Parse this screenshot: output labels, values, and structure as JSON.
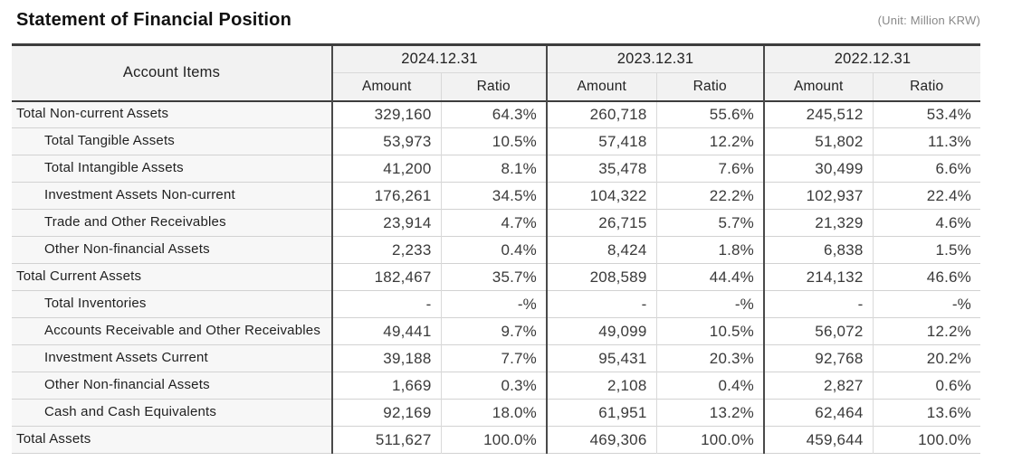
{
  "title": "Statement of Financial Position",
  "unit_note": "(Unit: Million KRW)",
  "colors": {
    "dark_border": "#3d3d3d",
    "light_border": "#d2d2d2",
    "header_bg": "#f2f2f2",
    "label_column_bg": "#f7f7f7",
    "unit_text": "#888888"
  },
  "table": {
    "account_header": "Account Items",
    "period_headers": [
      "2024.12.31",
      "2023.12.31",
      "2022.12.31"
    ],
    "sub_headers": [
      "Amount",
      "Ratio"
    ],
    "rows": [
      {
        "label": "Total Non-current Assets",
        "level": 0,
        "values": [
          "329,160",
          "64.3%",
          "260,718",
          "55.6%",
          "245,512",
          "53.4%"
        ]
      },
      {
        "label": "Total Tangible Assets",
        "level": 1,
        "values": [
          "53,973",
          "10.5%",
          "57,418",
          "12.2%",
          "51,802",
          "11.3%"
        ]
      },
      {
        "label": "Total Intangible Assets",
        "level": 1,
        "values": [
          "41,200",
          "8.1%",
          "35,478",
          "7.6%",
          "30,499",
          "6.6%"
        ]
      },
      {
        "label": "Investment Assets Non-current",
        "level": 1,
        "values": [
          "176,261",
          "34.5%",
          "104,322",
          "22.2%",
          "102,937",
          "22.4%"
        ]
      },
      {
        "label": "Trade and Other Receivables",
        "level": 1,
        "values": [
          "23,914",
          "4.7%",
          "26,715",
          "5.7%",
          "21,329",
          "4.6%"
        ]
      },
      {
        "label": "Other Non-financial Assets",
        "level": 1,
        "values": [
          "2,233",
          "0.4%",
          "8,424",
          "1.8%",
          "6,838",
          "1.5%"
        ]
      },
      {
        "label": "Total Current Assets",
        "level": 0,
        "values": [
          "182,467",
          "35.7%",
          "208,589",
          "44.4%",
          "214,132",
          "46.6%"
        ]
      },
      {
        "label": "Total Inventories",
        "level": 1,
        "values": [
          "-",
          "-%",
          "-",
          "-%",
          "-",
          "-%"
        ]
      },
      {
        "label": "Accounts Receivable and Other Receivables",
        "level": 1,
        "values": [
          "49,441",
          "9.7%",
          "49,099",
          "10.5%",
          "56,072",
          "12.2%"
        ]
      },
      {
        "label": "Investment Assets Current",
        "level": 1,
        "values": [
          "39,188",
          "7.7%",
          "95,431",
          "20.3%",
          "92,768",
          "20.2%"
        ]
      },
      {
        "label": "Other Non-financial Assets",
        "level": 1,
        "values": [
          "1,669",
          "0.3%",
          "2,108",
          "0.4%",
          "2,827",
          "0.6%"
        ]
      },
      {
        "label": "Cash and Cash Equivalents",
        "level": 1,
        "values": [
          "92,169",
          "18.0%",
          "61,951",
          "13.2%",
          "62,464",
          "13.6%"
        ]
      },
      {
        "label": "Total Assets",
        "level": 0,
        "values": [
          "511,627",
          "100.0%",
          "469,306",
          "100.0%",
          "459,644",
          "100.0%"
        ]
      }
    ]
  }
}
